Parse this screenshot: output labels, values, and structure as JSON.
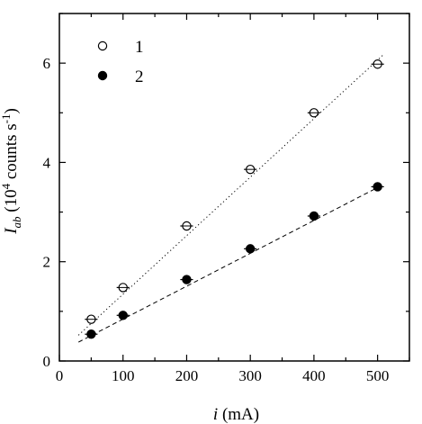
{
  "chart_data": {
    "type": "scatter",
    "xlabel": {
      "var": "i",
      "unit": " (mA)"
    },
    "ylabel": {
      "var": "I",
      "sub": "ab",
      "pre": "  (10",
      "sup": "4",
      "mid": " counts s",
      "sup2": "-1",
      "post": ")"
    },
    "xlim": [
      0,
      550
    ],
    "ylim": [
      0,
      7
    ],
    "xticks": [
      0,
      100,
      200,
      300,
      400,
      500
    ],
    "yticks": [
      0,
      2,
      4,
      6
    ],
    "grid": false,
    "legend_position": "top-left",
    "series": [
      {
        "name": "1",
        "marker": "open-circle",
        "fit": "dotted",
        "x": [
          50,
          100,
          200,
          300,
          400,
          500
        ],
        "y": [
          0.84,
          1.48,
          2.72,
          3.86,
          5.0,
          5.98
        ],
        "xerr": 10,
        "fit_line": {
          "x": [
            30,
            510
          ],
          "y": [
            0.52,
            6.18
          ]
        }
      },
      {
        "name": "2",
        "marker": "filled-circle",
        "fit": "dashed",
        "x": [
          50,
          100,
          200,
          300,
          400,
          500
        ],
        "y": [
          0.54,
          0.92,
          1.64,
          2.26,
          2.92,
          3.51
        ],
        "xerr": 10,
        "fit_line": {
          "x": [
            30,
            510
          ],
          "y": [
            0.38,
            3.56
          ]
        }
      }
    ]
  }
}
